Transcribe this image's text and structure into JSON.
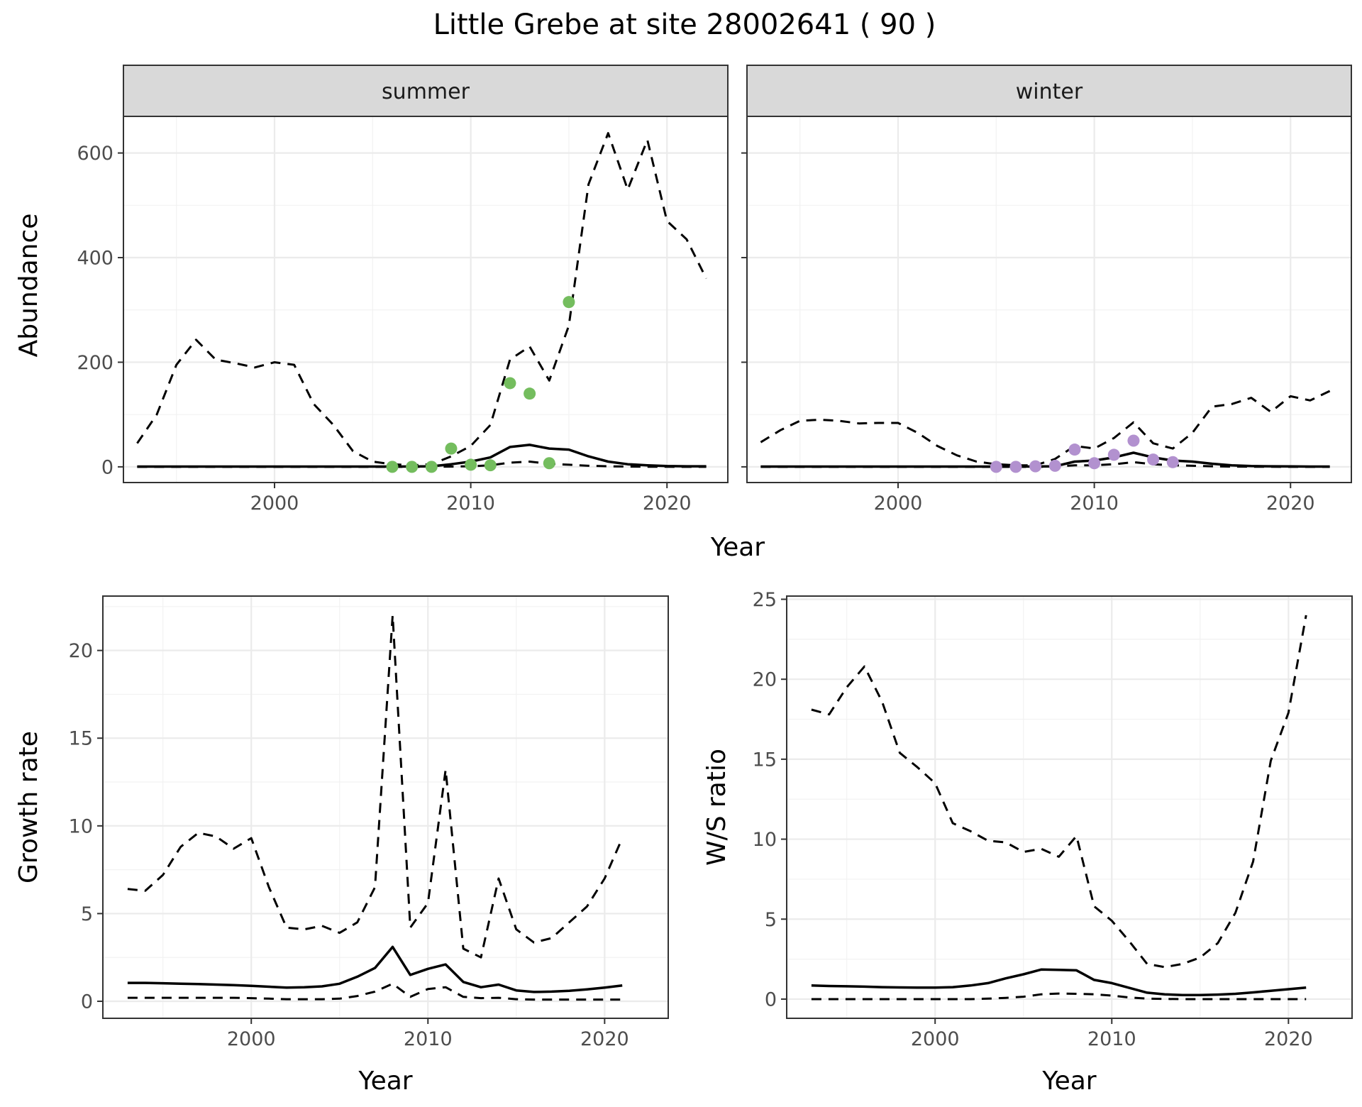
{
  "title": "Little Grebe at site 28002641 ( 90 )",
  "chart_data": [
    {
      "type": "line",
      "facet": "summer",
      "xlabel": "Year",
      "ylabel": "Abundance",
      "xlim": [
        1992.3,
        2023.1
      ],
      "ylim": [
        -30,
        670
      ],
      "xticks": [
        2000,
        2010,
        2020
      ],
      "yticks": [
        0,
        200,
        400,
        600
      ],
      "grid": true,
      "point_color": "#74bd5e",
      "x": [
        1993,
        1994,
        1995,
        1996,
        1997,
        1998,
        1999,
        2000,
        2001,
        2002,
        2003,
        2004,
        2005,
        2006,
        2007,
        2008,
        2009,
        2010,
        2011,
        2012,
        2013,
        2014,
        2015,
        2016,
        2017,
        2018,
        2019,
        2020,
        2021,
        2022
      ],
      "series": [
        {
          "style": "solid",
          "values": [
            0.5,
            0.5,
            0.5,
            0.5,
            0.5,
            0.5,
            0.5,
            0.5,
            0.5,
            0.5,
            0.5,
            0.5,
            0.5,
            0.5,
            0.6,
            1,
            5,
            10,
            18,
            38,
            42,
            35,
            33,
            20,
            10,
            5,
            3,
            1.5,
            1,
            1
          ]
        },
        {
          "style": "dashed",
          "values": [
            45,
            100,
            195,
            243,
            205,
            198,
            190,
            200,
            195,
            120,
            80,
            30,
            10,
            5,
            3,
            5,
            20,
            40,
            80,
            205,
            230,
            165,
            270,
            540,
            638,
            530,
            625,
            470,
            435,
            360
          ]
        },
        {
          "style": "dashed",
          "values": [
            0,
            0,
            0,
            0,
            0,
            0,
            0,
            0,
            0,
            0,
            0,
            0,
            0,
            0,
            0,
            0,
            0.5,
            1,
            3,
            8,
            10,
            6,
            4,
            2,
            1,
            0.5,
            0.2,
            0.1,
            0,
            0
          ]
        }
      ],
      "points": {
        "x": [
          2006,
          2007,
          2008,
          2009,
          2010,
          2011,
          2012,
          2013,
          2014,
          2015
        ],
        "y": [
          0,
          0,
          0,
          35,
          4,
          3,
          160,
          140,
          7,
          315
        ]
      }
    },
    {
      "type": "line",
      "facet": "winter",
      "xlabel": "Year",
      "ylabel": "Abundance",
      "xlim": [
        1992.3,
        2023.1
      ],
      "ylim": [
        -30,
        670
      ],
      "xticks": [
        2000,
        2010,
        2020
      ],
      "yticks": [
        0,
        200,
        400,
        600
      ],
      "grid": true,
      "point_color": "#b291cf",
      "x": [
        1993,
        1994,
        1995,
        1996,
        1997,
        1998,
        1999,
        2000,
        2001,
        2002,
        2003,
        2004,
        2005,
        2006,
        2007,
        2008,
        2009,
        2010,
        2011,
        2012,
        2013,
        2014,
        2015,
        2016,
        2017,
        2018,
        2019,
        2020,
        2021,
        2022
      ],
      "series": [
        {
          "style": "solid",
          "values": [
            0.5,
            0.5,
            0.5,
            0.5,
            0.5,
            0.5,
            0.5,
            0.5,
            0.5,
            0.5,
            0.5,
            0.5,
            0.5,
            0.5,
            0.6,
            1,
            10,
            12,
            18,
            27,
            18,
            12,
            10,
            6,
            3,
            1.5,
            1,
            0.8,
            0.5,
            0.5
          ]
        },
        {
          "style": "dashed",
          "values": [
            47,
            70,
            88,
            90,
            88,
            83,
            84,
            84,
            65,
            40,
            22,
            10,
            5,
            3,
            3,
            15,
            40,
            35,
            55,
            85,
            45,
            35,
            65,
            115,
            120,
            132,
            105,
            135,
            127,
            145
          ]
        },
        {
          "style": "dashed",
          "values": [
            0,
            0,
            0,
            0,
            0,
            0,
            0,
            0,
            0,
            0,
            0,
            0,
            0,
            0,
            0,
            0.5,
            3,
            3,
            5,
            9,
            5,
            3,
            2,
            1,
            0.5,
            0.2,
            0.1,
            0,
            0,
            0
          ]
        }
      ],
      "points": {
        "x": [
          2005,
          2006,
          2007,
          2008,
          2009,
          2010,
          2011,
          2012,
          2013,
          2014
        ],
        "y": [
          0,
          0,
          1,
          2,
          33,
          7,
          23,
          50,
          14,
          9
        ]
      }
    },
    {
      "type": "line",
      "xlabel": "Year",
      "ylabel": "Growth rate",
      "xlim": [
        1991.6,
        2023.6
      ],
      "ylim": [
        -0.97,
        23.1
      ],
      "xticks": [
        2000,
        2010,
        2020
      ],
      "yticks": [
        0,
        5,
        10,
        15,
        20
      ],
      "grid": true,
      "x": [
        1993,
        1994,
        1995,
        1996,
        1997,
        1998,
        1999,
        2000,
        2001,
        2002,
        2003,
        2004,
        2005,
        2006,
        2007,
        2008,
        2009,
        2010,
        2011,
        2012,
        2013,
        2014,
        2015,
        2016,
        2017,
        2018,
        2019,
        2020,
        2021
      ],
      "series": [
        {
          "style": "solid",
          "values": [
            1.05,
            1.05,
            1.03,
            1.0,
            0.98,
            0.95,
            0.92,
            0.88,
            0.83,
            0.78,
            0.8,
            0.85,
            1.0,
            1.4,
            1.9,
            3.1,
            1.5,
            1.85,
            2.1,
            1.1,
            0.8,
            0.95,
            0.62,
            0.53,
            0.55,
            0.6,
            0.68,
            0.78,
            0.9
          ]
        },
        {
          "style": "dashed",
          "values": [
            6.4,
            6.3,
            7.2,
            8.8,
            9.6,
            9.4,
            8.7,
            9.3,
            6.5,
            4.2,
            4.1,
            4.3,
            3.9,
            4.5,
            6.5,
            22,
            4.2,
            5.6,
            13.2,
            3.0,
            2.5,
            7.0,
            4.1,
            3.35,
            3.6,
            4.5,
            5.4,
            7.0,
            9.3
          ]
        },
        {
          "style": "dashed",
          "values": [
            0.2,
            0.2,
            0.2,
            0.2,
            0.2,
            0.2,
            0.2,
            0.18,
            0.15,
            0.12,
            0.12,
            0.12,
            0.15,
            0.3,
            0.55,
            1.0,
            0.25,
            0.7,
            0.8,
            0.25,
            0.18,
            0.2,
            0.12,
            0.1,
            0.1,
            0.1,
            0.1,
            0.1,
            0.1
          ]
        }
      ]
    },
    {
      "type": "line",
      "xlabel": "Year",
      "ylabel": "W/S ratio",
      "xlim": [
        1991.6,
        2023.6
      ],
      "ylim": [
        -1.2,
        25.2
      ],
      "xticks": [
        2000,
        2010,
        2020
      ],
      "yticks": [
        0,
        5,
        10,
        15,
        20,
        25
      ],
      "grid": true,
      "x": [
        1993,
        1994,
        1995,
        1996,
        1997,
        1998,
        1999,
        2000,
        2001,
        2002,
        2003,
        2004,
        2005,
        2006,
        2007,
        2008,
        2009,
        2010,
        2011,
        2012,
        2013,
        2014,
        2015,
        2016,
        2017,
        2018,
        2019,
        2020,
        2021
      ],
      "series": [
        {
          "style": "solid",
          "values": [
            0.85,
            0.82,
            0.8,
            0.78,
            0.75,
            0.73,
            0.72,
            0.72,
            0.75,
            0.85,
            1.0,
            1.3,
            1.55,
            1.85,
            1.83,
            1.8,
            1.2,
            1.0,
            0.7,
            0.4,
            0.3,
            0.25,
            0.25,
            0.28,
            0.33,
            0.42,
            0.52,
            0.62,
            0.72
          ]
        },
        {
          "style": "dashed",
          "values": [
            18.1,
            17.8,
            19.5,
            20.8,
            18.6,
            15.4,
            14.5,
            13.5,
            11.0,
            10.5,
            9.9,
            9.8,
            9.2,
            9.4,
            8.9,
            10.2,
            5.8,
            4.9,
            3.6,
            2.2,
            2.0,
            2.2,
            2.6,
            3.5,
            5.4,
            8.6,
            14.9,
            17.9,
            24.0
          ]
        },
        {
          "style": "dashed",
          "values": [
            0,
            0,
            0,
            0,
            0,
            0,
            0,
            0,
            0,
            0,
            0.03,
            0.08,
            0.15,
            0.3,
            0.35,
            0.33,
            0.3,
            0.22,
            0.1,
            0.03,
            0.01,
            0,
            0,
            0,
            0,
            0,
            0,
            0,
            0
          ]
        }
      ]
    }
  ]
}
